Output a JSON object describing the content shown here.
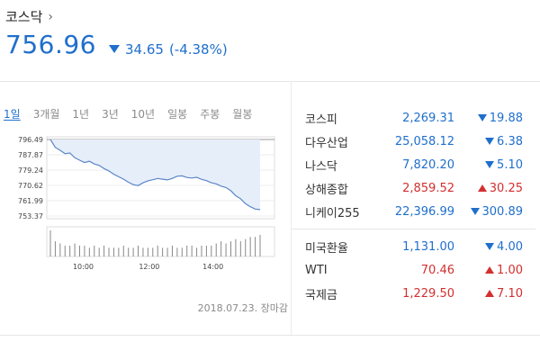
{
  "header": {
    "title": "코스닥",
    "price": "756.96",
    "change": "34.65",
    "change_pct": "(-4.38%)",
    "direction": "down"
  },
  "tabs": [
    "1일",
    "3개월",
    "1년",
    "3년",
    "10년",
    "일봉",
    "주봉",
    "월봉"
  ],
  "active_tab": 0,
  "chart_data": {
    "type": "area",
    "y_ticks": [
      "796.49",
      "787.87",
      "779.24",
      "770.62",
      "761.99",
      "753.37"
    ],
    "ylim": [
      753.37,
      796.49
    ],
    "x_ticks": [
      "10:00",
      "12:00",
      "14:00"
    ],
    "reference": 796.49,
    "series": [
      {
        "values": [
          796.49,
          792.1,
          790.4,
          788.5,
          788.9,
          786.2,
          784.8,
          783.5,
          784.2,
          782.7,
          781.9,
          780.1,
          778.8,
          776.9,
          775.5,
          774.1,
          772.4,
          771.0,
          770.5,
          772.1,
          773.2,
          773.8,
          774.5,
          774.1,
          773.7,
          774.6,
          775.8,
          776.0,
          775.1,
          774.8,
          775.2,
          774.0,
          773.3,
          772.1,
          771.5,
          770.2,
          769.4,
          767.6,
          764.8,
          763.1,
          760.3,
          758.6,
          757.3,
          756.96
        ]
      }
    ],
    "volume": [
      12,
      7,
      6,
      5,
      5,
      6,
      5,
      5,
      4,
      5,
      4,
      5,
      4,
      4,
      4,
      5,
      4,
      4,
      5,
      4,
      4,
      4,
      5,
      4,
      4,
      5,
      4,
      4,
      5,
      5,
      4,
      5,
      5,
      5,
      6,
      7,
      6,
      7,
      8,
      7,
      8,
      9,
      9,
      10
    ]
  },
  "date_text": "2018.07.23. 장마감",
  "markets": [
    {
      "name": "코스피",
      "value": "2,269.31",
      "change": "19.88",
      "dir": "down"
    },
    {
      "name": "다우산업",
      "value": "25,058.12",
      "change": "6.38",
      "dir": "down"
    },
    {
      "name": "나스닥",
      "value": "7,820.20",
      "change": "5.10",
      "dir": "down"
    },
    {
      "name": "상해종합",
      "value": "2,859.52",
      "change": "30.25",
      "dir": "up"
    },
    {
      "name": "니케이255",
      "value": "22,396.99",
      "change": "300.89",
      "dir": "down"
    }
  ],
  "markets2": [
    {
      "name": "미국환율",
      "value": "1,131.00",
      "change": "4.00",
      "dir": "down"
    },
    {
      "name": "WTI",
      "value": "70.46",
      "change": "1.00",
      "dir": "up"
    },
    {
      "name": "국제금",
      "value": "1,229.50",
      "change": "7.10",
      "dir": "up"
    }
  ],
  "colors": {
    "down": "#1f6fcc",
    "up": "#d32f2f",
    "area": "#e6eefa",
    "line": "#5b86c9"
  }
}
